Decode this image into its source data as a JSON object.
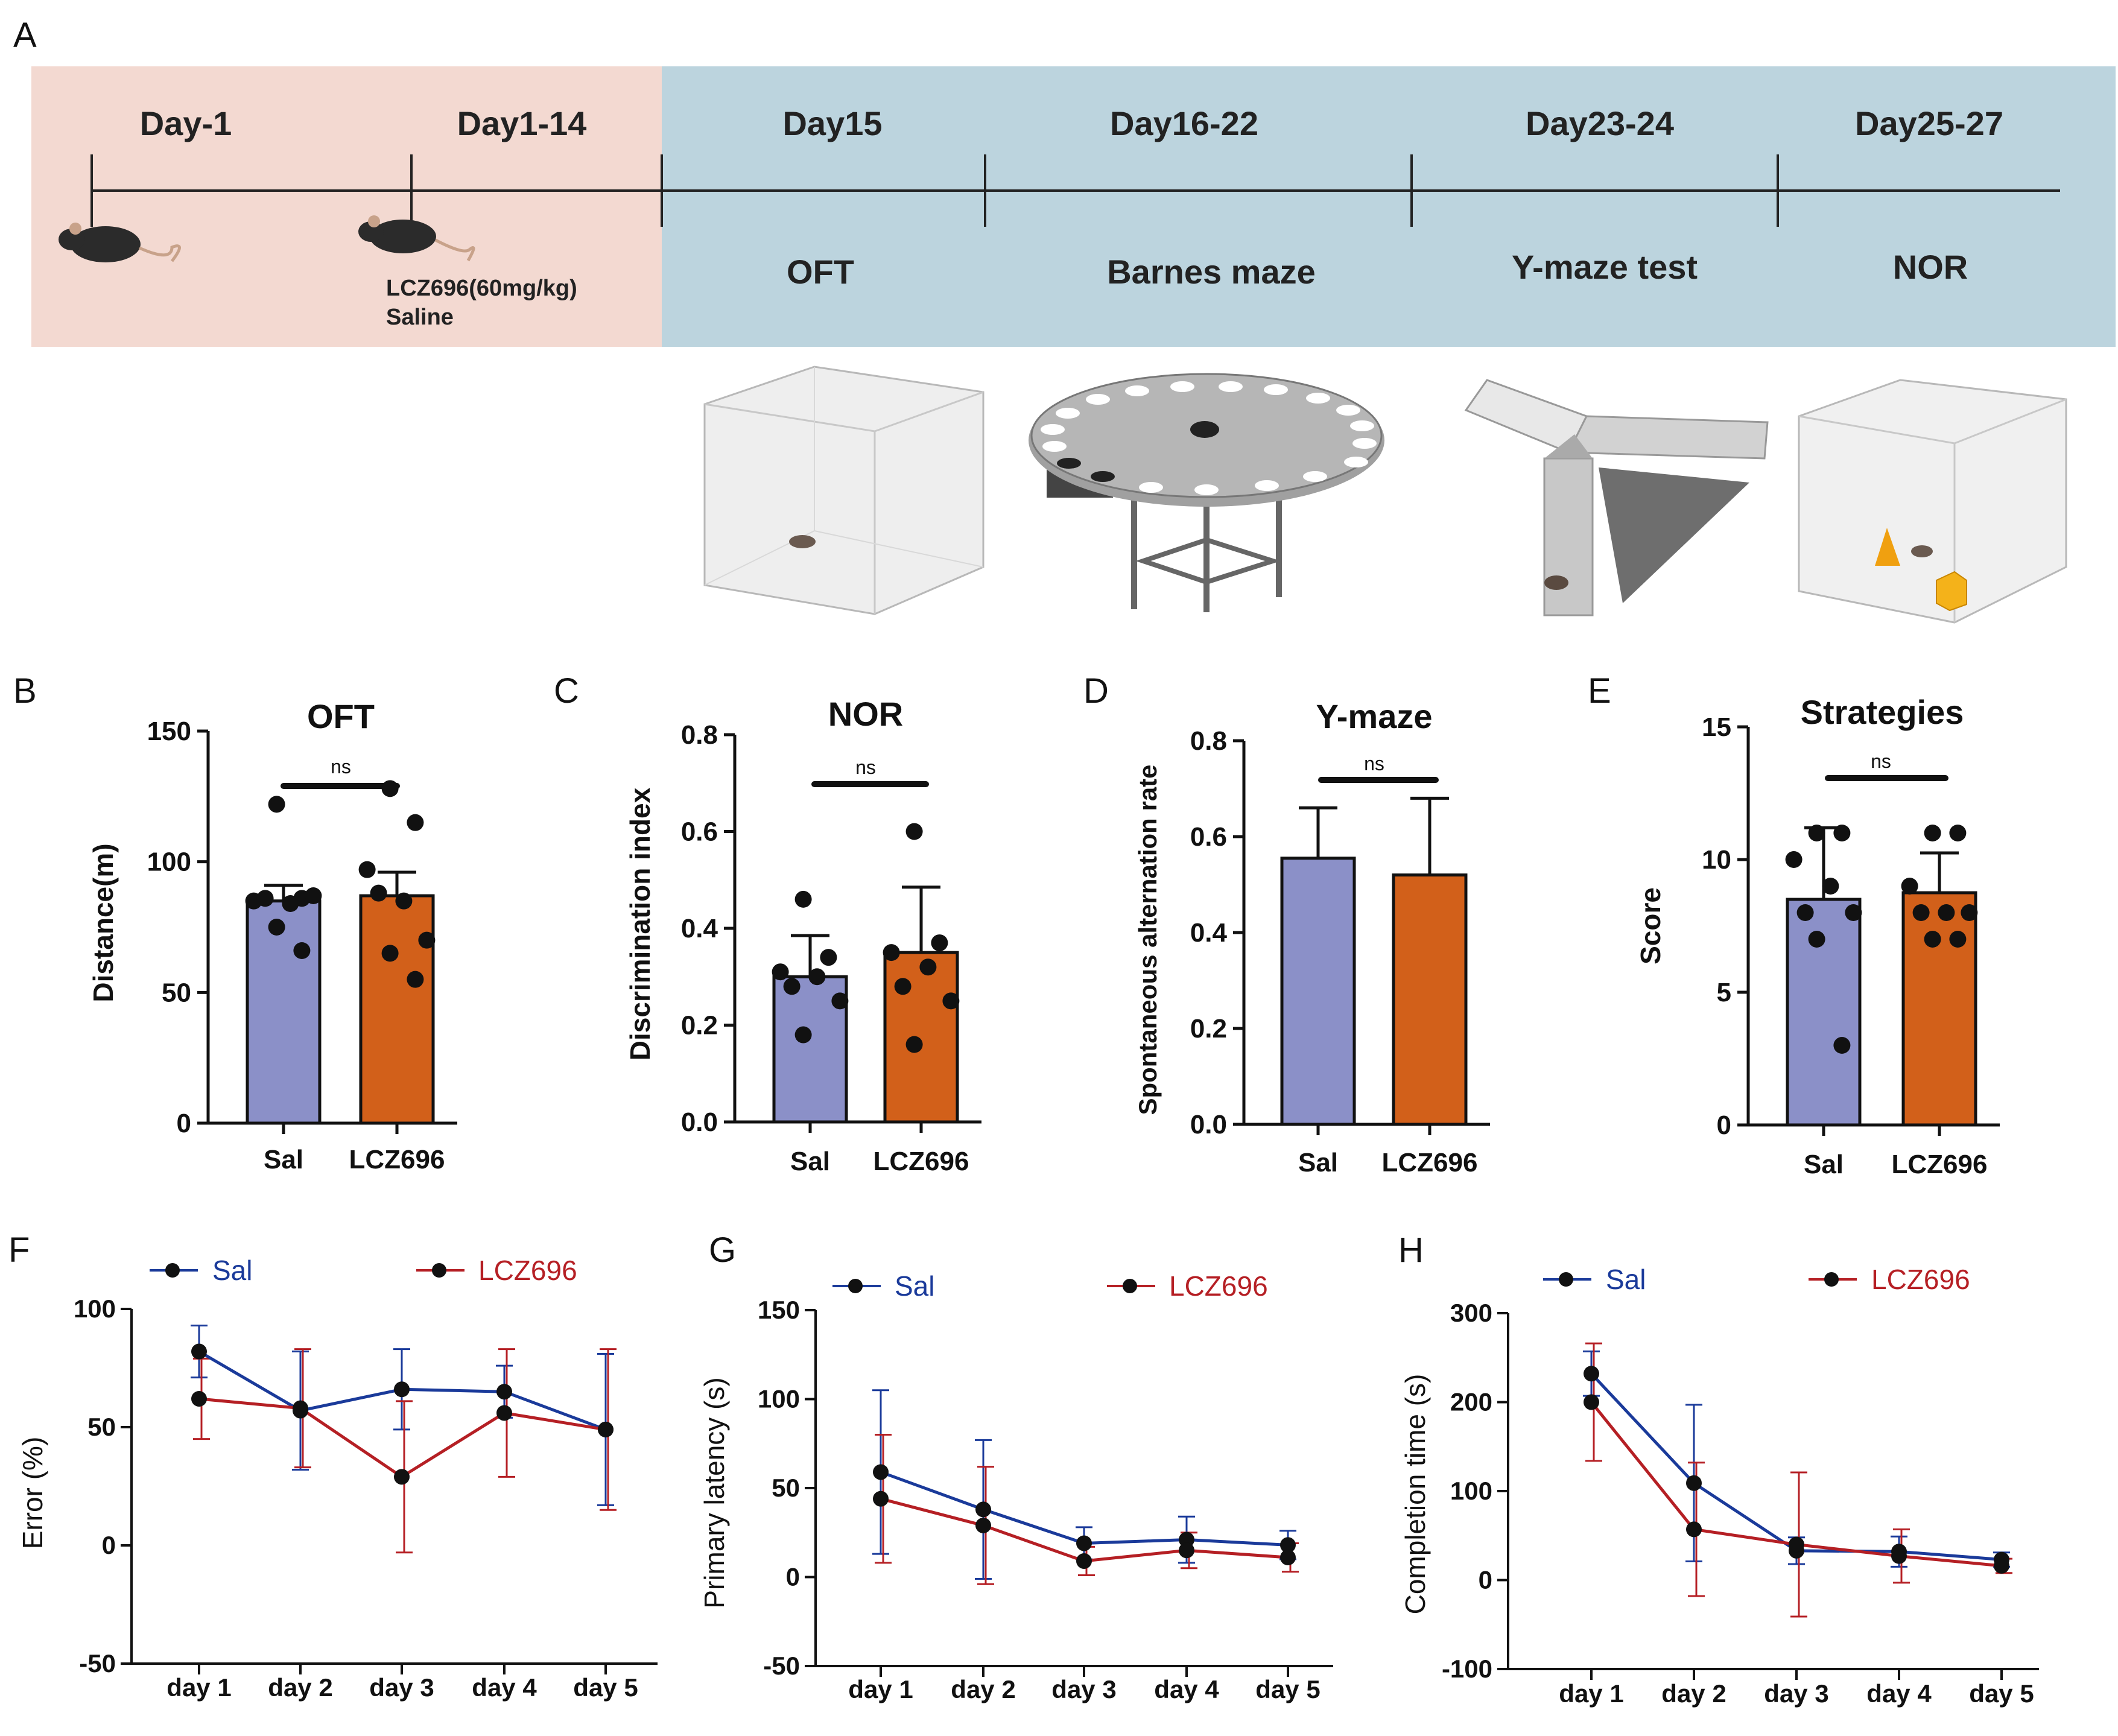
{
  "panel_labels": {
    "A": "A",
    "B": "B",
    "C": "C",
    "D": "D",
    "E": "E",
    "F": "F",
    "G": "G",
    "H": "H"
  },
  "colors": {
    "sal_bar": "#8b90c8",
    "lcz_bar": "#d2601a",
    "sal_line": "#1a3a9a",
    "lcz_line": "#b51f24",
    "timeline_pink": "#f3d9d1",
    "timeline_blue": "#bcd4de"
  },
  "timeline": {
    "days": [
      "Day-1",
      "Day1-14",
      "Day15",
      "Day16-22",
      "Day23-24",
      "Day25-27"
    ],
    "treatment_line1": "LCZ696(60mg/kg)",
    "treatment_line2": "Saline",
    "tests": [
      "OFT",
      "Barnes maze",
      "Y-maze test",
      "NOR"
    ],
    "icons": [
      "mouse-icon",
      "open-field-box-icon",
      "barnes-maze-icon",
      "y-maze-icon",
      "nor-box-icon"
    ]
  },
  "chart_data": [
    {
      "panel": "B",
      "type": "bar",
      "title": "OFT",
      "ylabel": "Distance(m)",
      "categories": [
        "Sal",
        "LCZ696"
      ],
      "ylim": [
        0,
        150
      ],
      "yticks": [
        "0",
        "50",
        "100",
        "150"
      ],
      "means": [
        85,
        87
      ],
      "sem": [
        6,
        9
      ],
      "significance": "ns",
      "points": [
        [
          122,
          86,
          85,
          84,
          86,
          87,
          75,
          66
        ],
        [
          128,
          115,
          97,
          85,
          88,
          70,
          65,
          55
        ]
      ]
    },
    {
      "panel": "C",
      "type": "bar",
      "title": "NOR",
      "ylabel": "Discrimination index",
      "categories": [
        "Sal",
        "LCZ696"
      ],
      "ylim": [
        0,
        0.8
      ],
      "yticks": [
        "0.0",
        "0.2",
        "0.4",
        "0.6",
        "0.8"
      ],
      "means": [
        0.3,
        0.35
      ],
      "sem": [
        0.085,
        0.135
      ],
      "significance": "ns",
      "points": [
        [
          0.46,
          0.34,
          0.31,
          0.3,
          0.28,
          0.25,
          0.18
        ],
        [
          0.6,
          0.37,
          0.35,
          0.32,
          0.28,
          0.25,
          0.16
        ]
      ]
    },
    {
      "panel": "D",
      "type": "bar",
      "title": "Y-maze",
      "ylabel": "Spontaneous alternation rate",
      "categories": [
        "Sal",
        "LCZ696"
      ],
      "ylim": [
        0,
        0.8
      ],
      "yticks": [
        "0.0",
        "0.2",
        "0.4",
        "0.6",
        "0.8"
      ],
      "means": [
        0.555,
        0.52
      ],
      "sem": [
        0.105,
        0.16
      ],
      "significance": "ns",
      "points": [
        [],
        []
      ]
    },
    {
      "panel": "E",
      "type": "bar",
      "title": "Strategies",
      "ylabel": "Score",
      "categories": [
        "Sal",
        "LCZ696"
      ],
      "ylim": [
        0,
        15
      ],
      "yticks": [
        "0",
        "5",
        "10",
        "15"
      ],
      "means": [
        8.5,
        8.75
      ],
      "sem": [
        2.7,
        1.5
      ],
      "significance": "ns",
      "points": [
        [
          11,
          11,
          10,
          9,
          8,
          8,
          7,
          3
        ],
        [
          11,
          11,
          9,
          8,
          8,
          8,
          7,
          7
        ]
      ]
    },
    {
      "panel": "F",
      "type": "line",
      "ylabel": "Error (%)",
      "x": [
        "day 1",
        "day 2",
        "day 3",
        "day 4",
        "day 5"
      ],
      "ylim": [
        -50,
        100
      ],
      "yticks": [
        "-50",
        "0",
        "50",
        "100"
      ],
      "series": [
        {
          "name": "Sal",
          "values": [
            82,
            57,
            66,
            65,
            49
          ],
          "err": [
            11,
            25,
            17,
            11,
            32
          ]
        },
        {
          "name": "LCZ696",
          "values": [
            62,
            58,
            29,
            56,
            49
          ],
          "err": [
            17,
            25,
            32,
            27,
            34
          ]
        }
      ]
    },
    {
      "panel": "G",
      "type": "line",
      "ylabel": "Primary latency (s)",
      "x": [
        "day 1",
        "day 2",
        "day 3",
        "day 4",
        "day 5"
      ],
      "ylim": [
        -50,
        150
      ],
      "yticks": [
        "-50",
        "0",
        "50",
        "100",
        "150"
      ],
      "series": [
        {
          "name": "Sal",
          "values": [
            59,
            38,
            19,
            21,
            18
          ],
          "err": [
            46,
            39,
            9,
            13,
            8
          ]
        },
        {
          "name": "LCZ696",
          "values": [
            44,
            29,
            9,
            15,
            11
          ],
          "err": [
            36,
            33,
            8,
            10,
            8
          ]
        }
      ]
    },
    {
      "panel": "H",
      "type": "line",
      "ylabel": "Completion time (s)",
      "x": [
        "day 1",
        "day 2",
        "day 3",
        "day 4",
        "day 5"
      ],
      "ylim": [
        -100,
        300
      ],
      "yticks": [
        "-100",
        "0",
        "100",
        "200",
        "300"
      ],
      "series": [
        {
          "name": "Sal",
          "values": [
            232,
            109,
            33,
            32,
            23
          ],
          "err": [
            25,
            88,
            15,
            17,
            8
          ]
        },
        {
          "name": "LCZ696",
          "values": [
            200,
            57,
            40,
            27,
            16
          ],
          "err": [
            66,
            75,
            81,
            30,
            8
          ]
        }
      ]
    }
  ]
}
